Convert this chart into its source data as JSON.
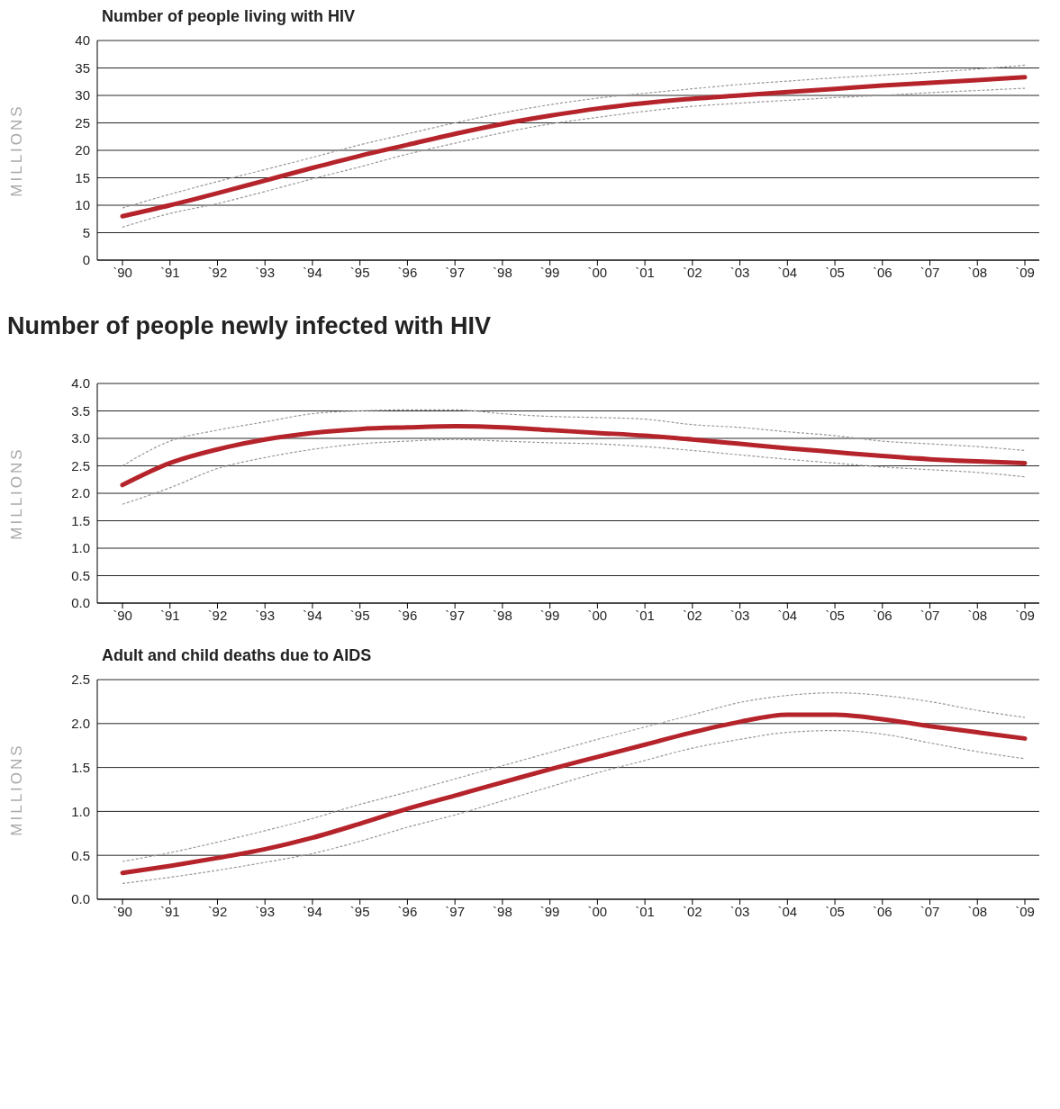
{
  "chart_data": [
    {
      "type": "line",
      "title": "Number of people living with HIV",
      "ylabel": "MILLIONS",
      "categories": [
        "`90",
        "`91",
        "`92",
        "`93",
        "`94",
        "`95",
        "`96",
        "`97",
        "`98",
        "`99",
        "`00",
        "`01",
        "`02",
        "`03",
        "`04",
        "`05",
        "`06",
        "`07",
        "`08",
        "`09"
      ],
      "series": [
        {
          "color": "#999999",
          "line_style": "dashed",
          "values": [
            9.5,
            12,
            14.3,
            16.5,
            18.7,
            21,
            23,
            25,
            26.8,
            28.3,
            29.5,
            30.4,
            31.2,
            32,
            32.6,
            33.2,
            33.7,
            34.2,
            34.8,
            35.5
          ]
        },
        {
          "color": "#999999",
          "line_style": "dashed",
          "values": [
            6,
            8.5,
            10.3,
            12.5,
            14.8,
            17,
            19.3,
            21.3,
            23.2,
            24.8,
            26,
            27.1,
            28,
            28.6,
            29.1,
            29.6,
            30,
            30.5,
            30.9,
            31.3
          ]
        },
        {
          "color": "#b5232b",
          "line_style": "solid",
          "values": [
            8,
            10,
            12.2,
            14.5,
            16.8,
            19,
            21,
            23,
            24.8,
            26.3,
            27.6,
            28.6,
            29.4,
            30,
            30.6,
            31.2,
            31.8,
            32.3,
            32.8,
            33.3
          ]
        }
      ],
      "ylim": [
        0,
        40
      ],
      "yticks": [
        0,
        5,
        10,
        15,
        20,
        25,
        30,
        35,
        40
      ],
      "grid": "y"
    },
    {
      "type": "line",
      "title": "Number of people newly infected with HIV",
      "ylabel": "MILLIONS",
      "categories": [
        "`90",
        "`91",
        "`92",
        "`93",
        "`94",
        "`95",
        "`96",
        "`97",
        "`98",
        "`99",
        "`00",
        "`01",
        "`02",
        "`03",
        "`04",
        "`05",
        "`06",
        "`07",
        "`08",
        "`09"
      ],
      "series": [
        {
          "color": "#999999",
          "line_style": "dashed",
          "values": [
            2.5,
            2.95,
            3.15,
            3.3,
            3.45,
            3.5,
            3.52,
            3.52,
            3.45,
            3.4,
            3.38,
            3.35,
            3.25,
            3.2,
            3.12,
            3.05,
            2.95,
            2.9,
            2.85,
            2.78
          ]
        },
        {
          "color": "#999999",
          "line_style": "dashed",
          "values": [
            1.8,
            2.1,
            2.45,
            2.65,
            2.8,
            2.9,
            2.95,
            2.98,
            2.95,
            2.92,
            2.9,
            2.85,
            2.78,
            2.7,
            2.62,
            2.55,
            2.48,
            2.43,
            2.38,
            2.3
          ]
        },
        {
          "color": "#b5232b",
          "line_style": "solid",
          "values": [
            2.15,
            2.55,
            2.8,
            2.98,
            3.1,
            3.17,
            3.2,
            3.22,
            3.2,
            3.15,
            3.1,
            3.05,
            2.98,
            2.9,
            2.82,
            2.75,
            2.68,
            2.62,
            2.58,
            2.55
          ]
        }
      ],
      "ylim": [
        0,
        4
      ],
      "yticks": [
        {
          "value": 0,
          "label": "0.0"
        },
        {
          "value": 0.5,
          "label": "0.5"
        },
        {
          "value": 1,
          "label": "1.0"
        },
        {
          "value": 1.5,
          "label": "1.5"
        },
        {
          "value": 2,
          "label": "2.0"
        },
        {
          "value": 2.5,
          "label": "2.5"
        },
        {
          "value": 3,
          "label": "3.0"
        },
        {
          "value": 3.5,
          "label": "3.5"
        },
        {
          "value": 4,
          "label": "4.0"
        }
      ],
      "grid": "y"
    },
    {
      "type": "line",
      "title": "Adult and child deaths due to AIDS",
      "ylabel": "MILLIONS",
      "categories": [
        "`90",
        "`91",
        "`92",
        "`93",
        "`94",
        "`95",
        "`96",
        "`97",
        "`98",
        "`99",
        "`00",
        "`01",
        "`02",
        "`03",
        "`04",
        "`05",
        "`06",
        "`07",
        "`08",
        "`09"
      ],
      "series": [
        {
          "color": "#999999",
          "line_style": "dashed",
          "values": [
            0.43,
            0.53,
            0.65,
            0.78,
            0.92,
            1.08,
            1.22,
            1.37,
            1.52,
            1.67,
            1.82,
            1.96,
            2.1,
            2.24,
            2.32,
            2.35,
            2.32,
            2.25,
            2.15,
            2.07
          ]
        },
        {
          "color": "#999999",
          "line_style": "dashed",
          "values": [
            0.18,
            0.25,
            0.33,
            0.42,
            0.52,
            0.66,
            0.82,
            0.96,
            1.12,
            1.28,
            1.44,
            1.58,
            1.72,
            1.82,
            1.9,
            1.92,
            1.88,
            1.78,
            1.68,
            1.6
          ]
        },
        {
          "color": "#b5232b",
          "line_style": "solid",
          "values": [
            0.3,
            0.38,
            0.47,
            0.57,
            0.7,
            0.86,
            1.03,
            1.18,
            1.33,
            1.48,
            1.62,
            1.76,
            1.9,
            2.02,
            2.1,
            2.1,
            2.05,
            1.97,
            1.9,
            1.83
          ]
        }
      ],
      "ylim": [
        0,
        2.5
      ],
      "yticks": [
        {
          "value": 0,
          "label": "0.0"
        },
        {
          "value": 0.5,
          "label": "0.5"
        },
        {
          "value": 1,
          "label": "1.0"
        },
        {
          "value": 1.5,
          "label": "1.5"
        },
        {
          "value": 2,
          "label": "2.0"
        },
        {
          "value": 2.5,
          "label": "2.5"
        }
      ],
      "grid": "y"
    }
  ]
}
